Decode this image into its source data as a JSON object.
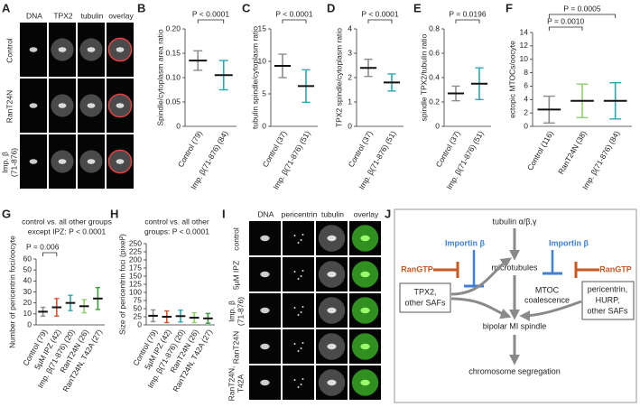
{
  "chart_data": [
    {
      "label": "B",
      "type": "dot-plot",
      "y_label": "Spindle/cytoplasm area ratio",
      "categories": [
        "Control (79)",
        "Imp. β(71-876) (84)"
      ],
      "colors": [
        "#8c8c8c",
        "#2aa9b0"
      ],
      "means": [
        0.135,
        0.105
      ],
      "sds": [
        0.02,
        0.03
      ],
      "ylim": [
        0,
        0.2
      ],
      "yticks": [
        0,
        0.05,
        {
          "value": 0.1,
          "label": "0.10"
        },
        0.15,
        {
          "value": 0.2,
          "label": "0.20"
        }
      ],
      "annotations": [
        "P < 0.0001"
      ]
    },
    {
      "label": "C",
      "type": "dot-plot",
      "y_label": "tubulin spindle/cytoplasm ratio",
      "categories": [
        "Control (37)",
        "Imp. β(71-876) (51)"
      ],
      "colors": [
        "#8c8c8c",
        "#2aa9b0"
      ],
      "means": [
        9.3,
        6.2
      ],
      "sds": [
        1.8,
        2.5
      ],
      "ylim": [
        0,
        15
      ],
      "yticks": [
        0,
        5,
        10,
        15
      ],
      "annotations": [
        "P < 0.0001"
      ]
    },
    {
      "label": "D",
      "type": "dot-plot",
      "y_label": "TPX2 spindle/cytoplasm ratio",
      "categories": [
        "Control (37)",
        "Imp. β(71-876) (51)"
      ],
      "colors": [
        "#8c8c8c",
        "#2aa9b0"
      ],
      "means": [
        2.4,
        1.8
      ],
      "sds": [
        0.35,
        0.35
      ],
      "ylim": [
        0,
        4
      ],
      "yticks": [
        0,
        1,
        2,
        3,
        4
      ],
      "annotations": [
        "P < 0.0001"
      ]
    },
    {
      "label": "E",
      "type": "dot-plot",
      "y_label": "spindle TPX2/tubulin ratio",
      "categories": [
        "Control (37)",
        "Imp. β(71-876) (51)"
      ],
      "colors": [
        "#8c8c8c",
        "#2aa9b0"
      ],
      "means": [
        0.27,
        0.35
      ],
      "sds": [
        0.06,
        0.13
      ],
      "ylim": [
        0,
        0.8
      ],
      "yticks": [
        0,
        0.2,
        0.4,
        0.6,
        0.8
      ],
      "annotations": [
        "P = 0.0196"
      ]
    },
    {
      "label": "F",
      "type": "dot-plot",
      "y_label": "ectopic MTOCs/oocyte",
      "categories": [
        "Control (116)",
        "RanT24N (38)",
        "Imp. β(71-876) (84)"
      ],
      "colors": [
        "#8c8c8c",
        "#8ed06c",
        "#2aa9b0"
      ],
      "means": [
        2.5,
        3.8,
        3.8
      ],
      "sds": [
        2,
        2.5,
        2.7
      ],
      "ylim": [
        0,
        14
      ],
      "yticks": [
        0,
        2,
        4,
        6,
        8,
        10,
        12,
        14
      ],
      "annotations": [
        "P = 0.0010",
        "P = 0.0005"
      ]
    },
    {
      "label": "G",
      "type": "dot-plot",
      "y_label": "Number of pericentrin foci/oocyte",
      "categories": [
        "Control (79)",
        "5µM IPZ (42)",
        "Imp. β(71-876) (20)",
        "RanT24N (26)",
        "RanT24N, T42A (27)"
      ],
      "colors": [
        "#8c8c8c",
        "#e0502a",
        "#2aa9b0",
        "#8ed06c",
        "#3a9a3a"
      ],
      "means": [
        12,
        16,
        20,
        17,
        24
      ],
      "sds": [
        4,
        8,
        7,
        6,
        10
      ],
      "ylim": [
        0,
        60
      ],
      "yticks": [
        0,
        10,
        20,
        30,
        40,
        50,
        60
      ],
      "annotations": [
        "control vs. all other groups",
        "except IPZ: P < 0.0001",
        "P = 0.006"
      ]
    },
    {
      "label": "H",
      "type": "dot-plot",
      "y_label": "Size of pericentrin foci (pixel²)",
      "categories": [
        "Control (79)",
        "5µM IPZ (42)",
        "Imp. β(71-876) (20)",
        "RanT24N (26)",
        "RanT24N, T42A (27)"
      ],
      "colors": [
        "#8c8c8c",
        "#e0502a",
        "#2aa9b0",
        "#8ed06c",
        "#3a9a3a"
      ],
      "means": [
        28,
        25,
        27,
        22,
        20
      ],
      "sds": [
        18,
        18,
        18,
        15,
        15
      ],
      "ylim": [
        0,
        250
      ],
      "yticks": [
        0,
        25,
        50,
        75,
        100,
        125,
        150,
        175,
        200,
        225,
        250
      ],
      "annotations": [
        "control vs. all other",
        "groups: P < 0.0001"
      ]
    }
  ],
  "panel_a": {
    "label": "A",
    "columns": [
      "DNA",
      "TPX2",
      "tubulin",
      "overlay"
    ],
    "rows": [
      [
        "Control"
      ],
      [
        "RanT24N"
      ],
      [
        "Imp. β",
        "(71-876)"
      ]
    ]
  },
  "panel_i": {
    "label": "I",
    "columns": [
      "DNA",
      "pericentrin",
      "tubulin",
      "overlay"
    ],
    "rows": [
      [
        "control"
      ],
      [
        "5µM IPZ"
      ],
      [
        "Imp. β",
        "(71-876)"
      ],
      [
        "RanT24N"
      ],
      [
        "RanT24N,",
        "T42A"
      ]
    ]
  },
  "panel_j": {
    "label": "J",
    "tubulin": "tubulin α/β,γ",
    "importin_left": "Importin β",
    "importin_right": "Importin β",
    "microtubules": "microtubules",
    "ran_left": "RanGTP",
    "ran_right": "RanGTP",
    "left_box": [
      "TPX2,",
      "other SAFs"
    ],
    "right_box": [
      "pericentrin,",
      "HURP,",
      "other SAFs"
    ],
    "mtoc": [
      "MTOC",
      "coalescence"
    ],
    "spindle": "bipolar MI spindle",
    "segregation": "chromosome segregation"
  }
}
